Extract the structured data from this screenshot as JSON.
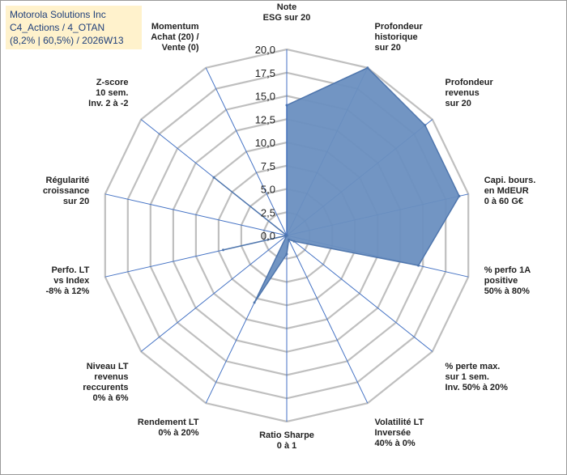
{
  "header": {
    "line1": "Motorola Solutions Inc",
    "line2": "C4_Actions / 4_OTAN",
    "line3": "(8,2% | 60,5%) / 2026W13"
  },
  "colors": {
    "fill": "#6a8fc0",
    "stroke": "#4f76ad",
    "grid": "#bfbfbf",
    "spoke": "#4472c4",
    "header_bg": "#fff2cc",
    "header_text": "#1f3f7a"
  },
  "chart_data": {
    "type": "radar",
    "rmin": 0,
    "rmax": 20,
    "ticks": [
      "0,0",
      "2,5",
      "5,0",
      "7,5",
      "10,0",
      "12,5",
      "15,0",
      "17,5",
      "20,0"
    ],
    "tick_values": [
      0,
      2.5,
      5,
      7.5,
      10,
      12.5,
      15,
      17.5,
      20
    ],
    "axes": [
      {
        "label": [
          "Note",
          "ESG sur 20"
        ],
        "value": 14
      },
      {
        "label": [
          "Profondeur",
          "historique",
          "sur 20"
        ],
        "value": 20
      },
      {
        "label": [
          "Profondeur",
          "revenus",
          "sur 20"
        ],
        "value": 19
      },
      {
        "label": [
          "Capi. bours.",
          "en MdEUR",
          "0 à 60 G€"
        ],
        "value": 19
      },
      {
        "label": [
          "% perfo 1A",
          "positive",
          "50% à 80%"
        ],
        "value": 14.5
      },
      {
        "label": [
          "% perte max.",
          "sur 1 sem.",
          "Inv. 50% à 20%"
        ],
        "value": 1
      },
      {
        "label": [
          "Volatilité LT",
          "Inversée",
          "40% à 0%"
        ],
        "value": 0.5
      },
      {
        "label": [
          "Ratio Sharpe",
          "0 à 1"
        ],
        "value": 2
      },
      {
        "label": [
          "Rendement LT",
          "0% à 20%"
        ],
        "value": 8
      },
      {
        "label": [
          "Niveau LT",
          "revenus",
          "reccurents",
          "0% à 6%"
        ],
        "value": 0
      },
      {
        "label": [
          "Perfo. LT",
          "vs Index",
          "-8% à 12%"
        ],
        "value": 7
      },
      {
        "label": [
          "Régularité",
          "croissance",
          "sur 20"
        ],
        "value": 0
      },
      {
        "label": [
          "Z-score",
          "10 sem.",
          "Inv. 2 à -2"
        ],
        "value": 10
      },
      {
        "label": [
          "Momentum",
          "Achat (20) /",
          "Vente (0)"
        ],
        "value": 0
      }
    ]
  }
}
